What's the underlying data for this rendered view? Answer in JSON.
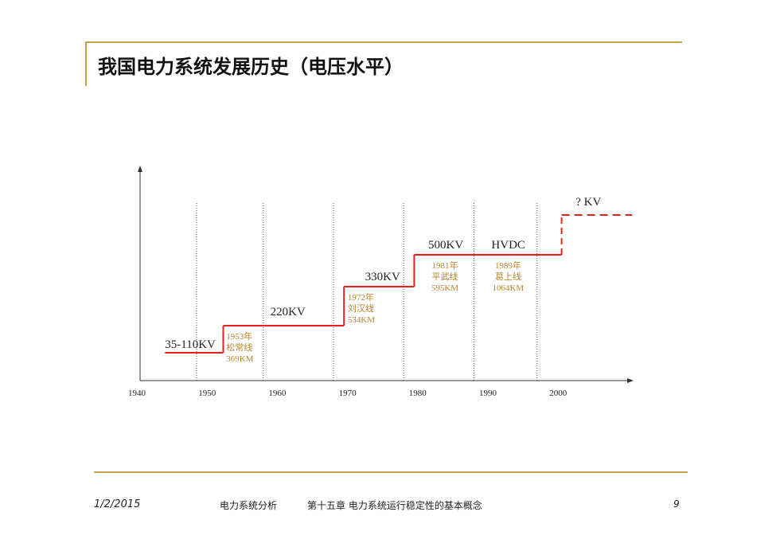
{
  "slide": {
    "title": "我国电力系统发展历史（电压水平）"
  },
  "footer": {
    "date": "1/2/2015",
    "course": "电力系统分析",
    "chapter": "第十五章 电力系统运行稳定性的基本概念",
    "page": "9"
  },
  "chart_data": {
    "type": "line",
    "step": true,
    "grid": "vertical-dotted",
    "xlim": [
      1940,
      2010
    ],
    "x_ticks": [
      1940,
      1950,
      1960,
      1970,
      1980,
      1990,
      2000
    ],
    "gridlines_x": [
      1948.5,
      1958,
      1968,
      1978,
      1988,
      1997
    ],
    "line_color": "#e8221f",
    "annotation_color": "#b8862e",
    "segments": [
      {
        "from": 1944,
        "to": 1952.3,
        "level": 1,
        "label": "35-110KV"
      },
      {
        "from": 1952.3,
        "to": 1969.5,
        "level": 2,
        "label": "220KV"
      },
      {
        "from": 1969.5,
        "to": 1979.5,
        "level": 3,
        "label": "330KV"
      },
      {
        "from": 1979.5,
        "to": 2000.5,
        "level": 4,
        "label": "500KV"
      },
      {
        "from": 2000.5,
        "to": 2006,
        "level": 5,
        "label": "? KV",
        "dashed": true
      }
    ],
    "extra_labels": [
      {
        "text": "HVDC",
        "x": 1990.5,
        "level": 4
      }
    ],
    "annotations": [
      {
        "x": 1952.5,
        "level": 1,
        "lines": [
          "1953年",
          "松常线",
          "369KM"
        ]
      },
      {
        "x": 1969.8,
        "level": 2,
        "lines": [
          "1972年",
          "刘汉线",
          "534KM"
        ]
      },
      {
        "x": 1980.7,
        "level": 3,
        "lines": [
          "1981年",
          "平武线",
          "595KM"
        ]
      },
      {
        "x": 1989.7,
        "level": 3,
        "lines": [
          "1989年",
          "葛上线",
          "1064KM"
        ]
      }
    ]
  }
}
